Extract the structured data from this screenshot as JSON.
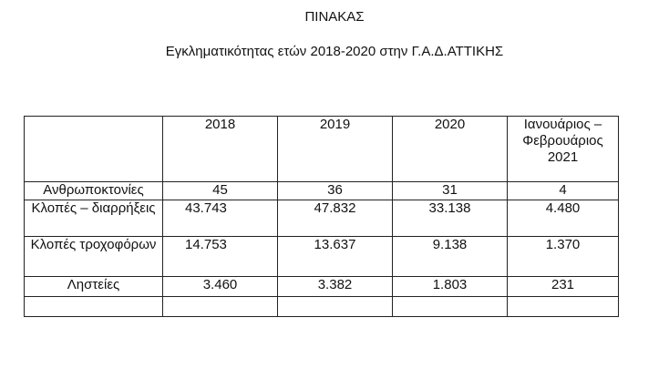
{
  "document": {
    "title": "ΠΙΝΑΚΑΣ",
    "subtitle": "Εγκληματικότητας ετών 2018-2020 στην Γ.Α.Δ.ΑΤΤΙΚΗΣ"
  },
  "table": {
    "columns": [
      "",
      "2018",
      "2019",
      "2020",
      "Ιανουάριος – Φεβρουάριος 2021"
    ],
    "rows": [
      {
        "label": "Ανθρωποκτονίες",
        "values": [
          "45",
          "36",
          "31",
          "4"
        ]
      },
      {
        "label": "Κλοπές – διαρρήξεις",
        "values": [
          "43.743",
          "47.832",
          "33.138",
          "4.480"
        ]
      },
      {
        "label": "Κλοπές τροχοφόρων",
        "values": [
          "14.753",
          "13.637",
          "9.138",
          "1.370"
        ]
      },
      {
        "label": "Ληστείες",
        "values": [
          "3.460",
          "3.382",
          "1.803",
          "231"
        ]
      },
      {
        "label": "",
        "values": [
          "",
          "",
          "",
          ""
        ]
      }
    ]
  }
}
